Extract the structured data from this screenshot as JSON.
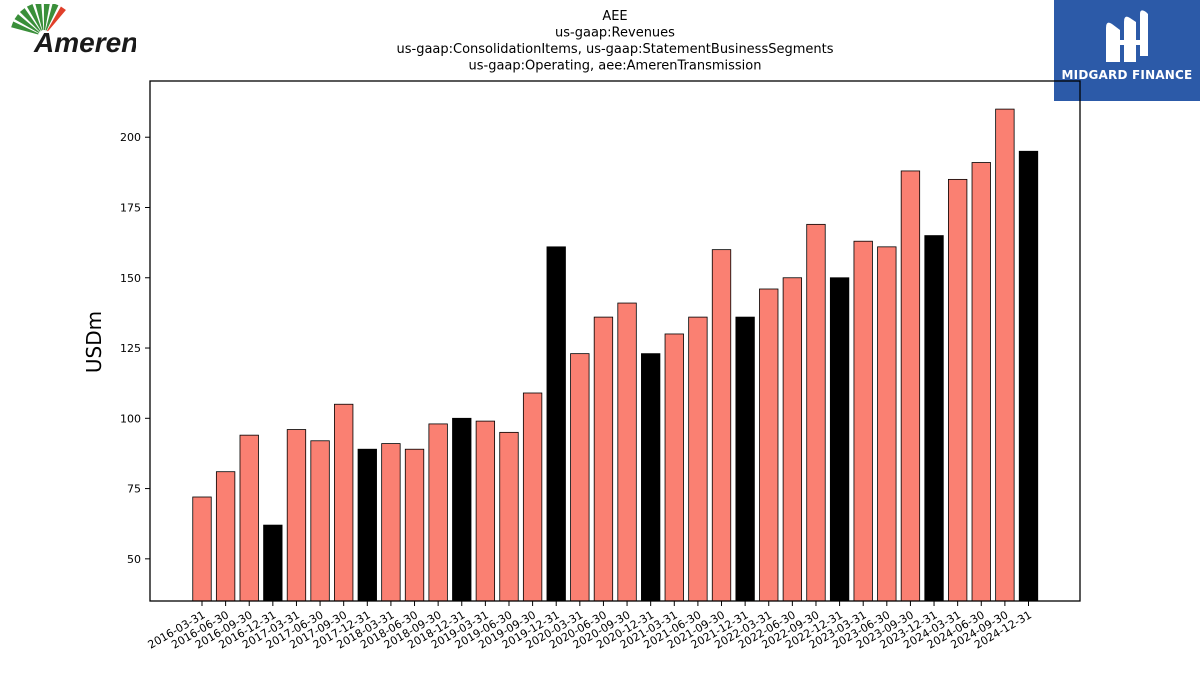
{
  "logos": {
    "left_text": "Ameren",
    "right_text": "MIDGARD FINANCE",
    "colors": {
      "ameren_green": "#3a8f3a",
      "ameren_red": "#e0402a",
      "midgard_blue": "#2c5aa8"
    }
  },
  "chart_data": {
    "type": "bar",
    "title_lines": [
      "AEE",
      "us-gaap:Revenues",
      "us-gaap:ConsolidationItems, us-gaap:StatementBusinessSegments",
      "us-gaap:Operating, aee:AmerenTransmission"
    ],
    "ylabel": "USDm",
    "xlabel": "",
    "ylim": [
      35,
      220
    ],
    "yticks": [
      50,
      75,
      100,
      125,
      150,
      175,
      200
    ],
    "grid": false,
    "colors": {
      "quarter": "#fa8072",
      "year_end": "#000000",
      "edge": "#000000"
    },
    "categories": [
      "2016-03-31",
      "2016-06-30",
      "2016-09-30",
      "2016-12-31",
      "2017-03-31",
      "2017-06-30",
      "2017-09-30",
      "2017-12-31",
      "2018-03-31",
      "2018-06-30",
      "2018-09-30",
      "2018-12-31",
      "2019-03-31",
      "2019-06-30",
      "2019-09-30",
      "2019-12-31",
      "2020-03-31",
      "2020-06-30",
      "2020-09-30",
      "2020-12-31",
      "2021-03-31",
      "2021-06-30",
      "2021-09-30",
      "2021-12-31",
      "2022-03-31",
      "2022-06-30",
      "2022-09-30",
      "2022-12-31",
      "2023-03-31",
      "2023-06-30",
      "2023-09-30",
      "2023-12-31",
      "2024-03-31",
      "2024-06-30",
      "2024-09-30",
      "2024-12-31"
    ],
    "values": [
      72,
      81,
      94,
      62,
      96,
      92,
      105,
      89,
      91,
      89,
      98,
      100,
      99,
      95,
      109,
      161,
      123,
      136,
      141,
      123,
      130,
      136,
      160,
      136,
      146,
      150,
      169,
      150,
      163,
      161,
      188,
      165,
      185,
      191,
      210,
      195
    ]
  }
}
